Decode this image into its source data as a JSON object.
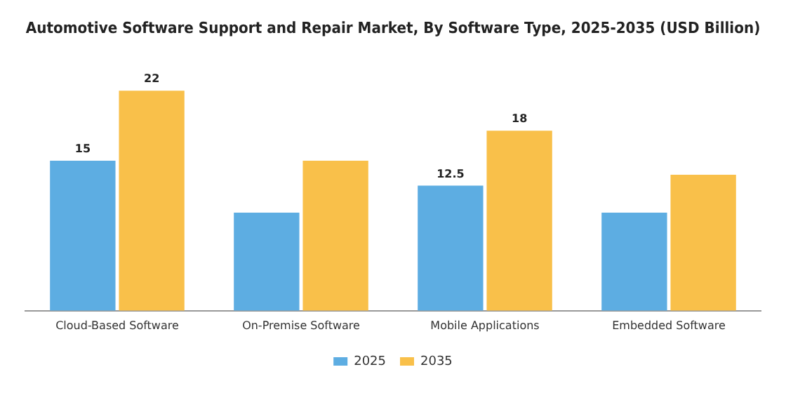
{
  "chart_data": {
    "type": "bar",
    "title": "Automotive Software Support and Repair Market, By Software Type, 2025-2035 (USD Billion)",
    "categories": [
      "Cloud-Based Software",
      "On-Premise Software",
      "Mobile Applications",
      "Embedded Software"
    ],
    "series": [
      {
        "name": "2025",
        "color": "#5dade2",
        "values": [
          15,
          9.8,
          12.5,
          9.8
        ],
        "value_labels": [
          "15",
          null,
          "12.5",
          null
        ]
      },
      {
        "name": "2035",
        "color": "#f9c04a",
        "values": [
          22,
          15,
          18,
          13.6
        ],
        "value_labels": [
          "22",
          null,
          "18",
          null
        ]
      }
    ],
    "grid": false,
    "legend": "bottom",
    "tick_labels": "x"
  }
}
